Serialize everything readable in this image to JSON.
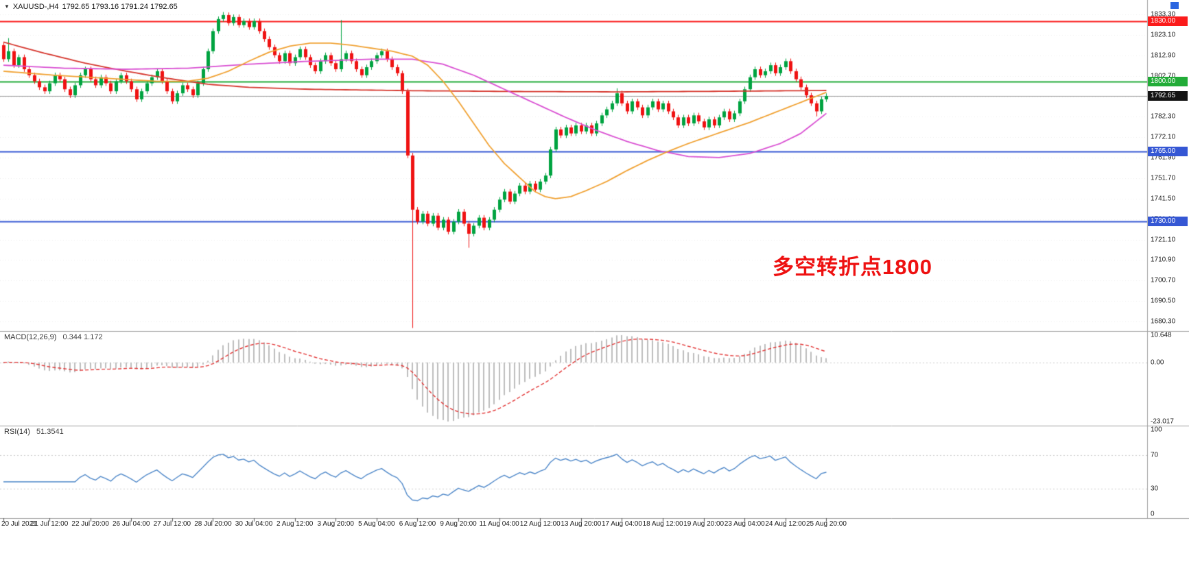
{
  "window": {
    "title_symbol": "XAUUSD-,H4",
    "ohlc_text": "1792.65 1793.16 1791.24 1792.65",
    "dropdown_icon": "▼"
  },
  "chart_data": {
    "type": "candlestick",
    "symbol": "XAUUSD-",
    "timeframe": "H4",
    "panels": [
      "price",
      "MACD",
      "RSI"
    ],
    "price_axis": {
      "tick_prices": [
        1833.3,
        1823.1,
        1812.9,
        1802.7,
        1792.5,
        1782.3,
        1772.1,
        1761.9,
        1751.7,
        1741.5,
        1731.3,
        1721.1,
        1710.9,
        1700.7,
        1690.5,
        1680.3
      ],
      "top_price": 1840.5,
      "bottom_price": 1675.5
    },
    "hlines": [
      {
        "price": 1830.0,
        "label": "1830.00",
        "color": "#fb1b1b",
        "badge_bg": "#fb1b1b",
        "width": 2
      },
      {
        "price": 1800.0,
        "label": "1800.00",
        "color": "#22ac38",
        "badge_bg": "#22ac38",
        "width": 2
      },
      {
        "price": 1792.65,
        "label": "1792.65",
        "color": "#9b9b9b",
        "badge_bg": "#141414",
        "width": 1
      },
      {
        "price": 1765.0,
        "label": "1765.00",
        "color": "#3557d4",
        "badge_bg": "#3557d4",
        "width": 2
      },
      {
        "price": 1730.0,
        "label": "1730.00",
        "color": "#3557d4",
        "badge_bg": "#3557d4",
        "width": 2
      }
    ],
    "candles": {
      "first_open": 1818,
      "default_wick": 1.3,
      "closes": [
        1811,
        1815,
        1808,
        1812,
        1806,
        1803,
        1800,
        1797,
        1795,
        1799,
        1803,
        1801,
        1796,
        1793,
        1798,
        1803,
        1806,
        1801,
        1798,
        1802,
        1799,
        1795,
        1800,
        1803,
        1800,
        1796,
        1791,
        1795,
        1799,
        1802,
        1805,
        1800,
        1795,
        1790,
        1794,
        1798,
        1796,
        1793,
        1799,
        1806,
        1815,
        1825,
        1831,
        1833,
        1829,
        1832,
        1828,
        1830,
        1827,
        1830,
        1825,
        1821,
        1817,
        1813,
        1810,
        1814,
        1809,
        1812,
        1816,
        1812,
        1808,
        1805,
        1810,
        1813,
        1809,
        1806,
        1811,
        1814,
        1810,
        1806,
        1803,
        1807,
        1810,
        1813,
        1815,
        1811,
        1807,
        1804,
        1795,
        1763,
        1736,
        1730,
        1734,
        1729,
        1733,
        1727,
        1731,
        1725,
        1730,
        1735,
        1729,
        1724,
        1728,
        1732,
        1727,
        1731,
        1736,
        1741,
        1745,
        1740,
        1744,
        1748,
        1745,
        1749,
        1746,
        1750,
        1753,
        1766,
        1776,
        1773,
        1777,
        1774,
        1778,
        1775,
        1778,
        1774,
        1779,
        1783,
        1786,
        1789,
        1794,
        1789,
        1785,
        1790,
        1787,
        1783,
        1787,
        1790,
        1786,
        1789,
        1785,
        1782,
        1778,
        1782,
        1779,
        1783,
        1780,
        1777,
        1781,
        1778,
        1782,
        1785,
        1781,
        1784,
        1790,
        1796,
        1802,
        1806,
        1803,
        1805,
        1808,
        1804,
        1807,
        1810,
        1805,
        1801,
        1797,
        1793,
        1789,
        1785,
        1791,
        1792.65
      ],
      "overrides": {
        "1": {
          "h": 1821.5
        },
        "43": {
          "h": 1834.5
        },
        "66": {
          "h": 1830.5
        },
        "80": {
          "l": 1677
        },
        "91": {
          "l": 1717
        },
        "120": {
          "h": 1796.5
        },
        "159": {
          "l": 1782.5
        }
      }
    },
    "ma_lines": [
      {
        "name": "ma-slow-red",
        "color": "#d5342b",
        "width": 1.8,
        "points": [
          [
            0,
            1819.5
          ],
          [
            8,
            1814
          ],
          [
            16,
            1809
          ],
          [
            24,
            1805
          ],
          [
            32,
            1801.5
          ],
          [
            40,
            1798.5
          ],
          [
            48,
            1797
          ],
          [
            60,
            1796
          ],
          [
            80,
            1795.3
          ],
          [
            100,
            1794.9
          ],
          [
            120,
            1794.7
          ],
          [
            140,
            1795
          ],
          [
            161,
            1795.4
          ]
        ]
      },
      {
        "name": "ma-mid-magenta",
        "color": "#d94fd2",
        "width": 1.8,
        "points": [
          [
            0,
            1808
          ],
          [
            12,
            1806.5
          ],
          [
            24,
            1806
          ],
          [
            36,
            1806.5
          ],
          [
            48,
            1808.5
          ],
          [
            60,
            1810
          ],
          [
            72,
            1811
          ],
          [
            80,
            1811
          ],
          [
            86,
            1808.5
          ],
          [
            92,
            1803
          ],
          [
            98,
            1796
          ],
          [
            104,
            1789
          ],
          [
            110,
            1782
          ],
          [
            116,
            1775.5
          ],
          [
            122,
            1770
          ],
          [
            128,
            1765.5
          ],
          [
            134,
            1762.5
          ],
          [
            140,
            1762
          ],
          [
            146,
            1764
          ],
          [
            152,
            1769
          ],
          [
            156,
            1774
          ],
          [
            161,
            1784
          ]
        ]
      },
      {
        "name": "ma-fast-orange",
        "color": "#f0a030",
        "width": 1.8,
        "points": [
          [
            0,
            1805
          ],
          [
            10,
            1803
          ],
          [
            20,
            1801.5
          ],
          [
            30,
            1800
          ],
          [
            36,
            1800
          ],
          [
            40,
            1801.5
          ],
          [
            44,
            1805
          ],
          [
            48,
            1810
          ],
          [
            52,
            1814.5
          ],
          [
            56,
            1817.5
          ],
          [
            60,
            1819
          ],
          [
            64,
            1819
          ],
          [
            68,
            1818
          ],
          [
            72,
            1816.5
          ],
          [
            76,
            1815
          ],
          [
            80,
            1812.5
          ],
          [
            83,
            1808
          ],
          [
            86,
            1800
          ],
          [
            89,
            1790
          ],
          [
            92,
            1779
          ],
          [
            95,
            1768
          ],
          [
            98,
            1759
          ],
          [
            101,
            1752
          ],
          [
            104,
            1745
          ],
          [
            106,
            1742.5
          ],
          [
            108,
            1741.5
          ],
          [
            111,
            1742.5
          ],
          [
            114,
            1745.5
          ],
          [
            118,
            1750
          ],
          [
            122,
            1755.5
          ],
          [
            126,
            1760.5
          ],
          [
            130,
            1765
          ],
          [
            134,
            1769
          ],
          [
            138,
            1772.5
          ],
          [
            142,
            1776
          ],
          [
            146,
            1779.5
          ],
          [
            150,
            1783.5
          ],
          [
            154,
            1787.5
          ],
          [
            158,
            1791.5
          ],
          [
            161,
            1794.5
          ]
        ]
      }
    ],
    "time_axis": {
      "labels": [
        "20 Jul 2021",
        "21 Jul 12:00",
        "22 Jul 20:00",
        "26 Jul 04:00",
        "27 Jul 12:00",
        "28 Jul 20:00",
        "30 Jul 04:00",
        "2 Aug 12:00",
        "3 Aug 20:00",
        "5 Aug 04:00",
        "6 Aug 12:00",
        "9 Aug 20:00",
        "11 Aug 04:00",
        "12 Aug 12:00",
        "13 Aug 20:00",
        "17 Aug 04:00",
        "18 Aug 12:00",
        "19 Aug 20:00",
        "23 Aug 04:00",
        "24 Aug 12:00",
        "25 Aug 20:00"
      ],
      "bars": [
        0,
        9,
        17,
        25,
        33,
        41,
        49,
        57,
        65,
        73,
        81,
        89,
        97,
        105,
        113,
        121,
        129,
        137,
        145,
        153,
        161
      ]
    },
    "macd": {
      "label": "MACD(12,26,9)",
      "values_text": "0.344 1.172",
      "fast": 12,
      "slow": 26,
      "signal": 9,
      "axis_max": 10.648,
      "axis_min": -23.017,
      "axis_labels": [
        "10.648",
        "0.00",
        "-23.017"
      ],
      "hist_color": "#bdbdbd",
      "signal_color": "#e23333"
    },
    "rsi": {
      "label": "RSI(14)",
      "value_text": "51.3541",
      "period": 14,
      "levels": [
        100,
        70,
        30,
        0
      ],
      "level_labels": [
        "100",
        "70",
        "30",
        "0"
      ],
      "line_color": "#4c86c8"
    },
    "annotation": {
      "text": "多空转折点1800",
      "color": "#ee1111"
    },
    "style": {
      "up_color": "#00a340",
      "down_color": "#ef1212",
      "current_price_line": "#9b9b9b",
      "grid": "#ebebeb",
      "separator": "#a0a0a0",
      "tick_color": "#555555",
      "badge_text": "#ffffff"
    }
  }
}
